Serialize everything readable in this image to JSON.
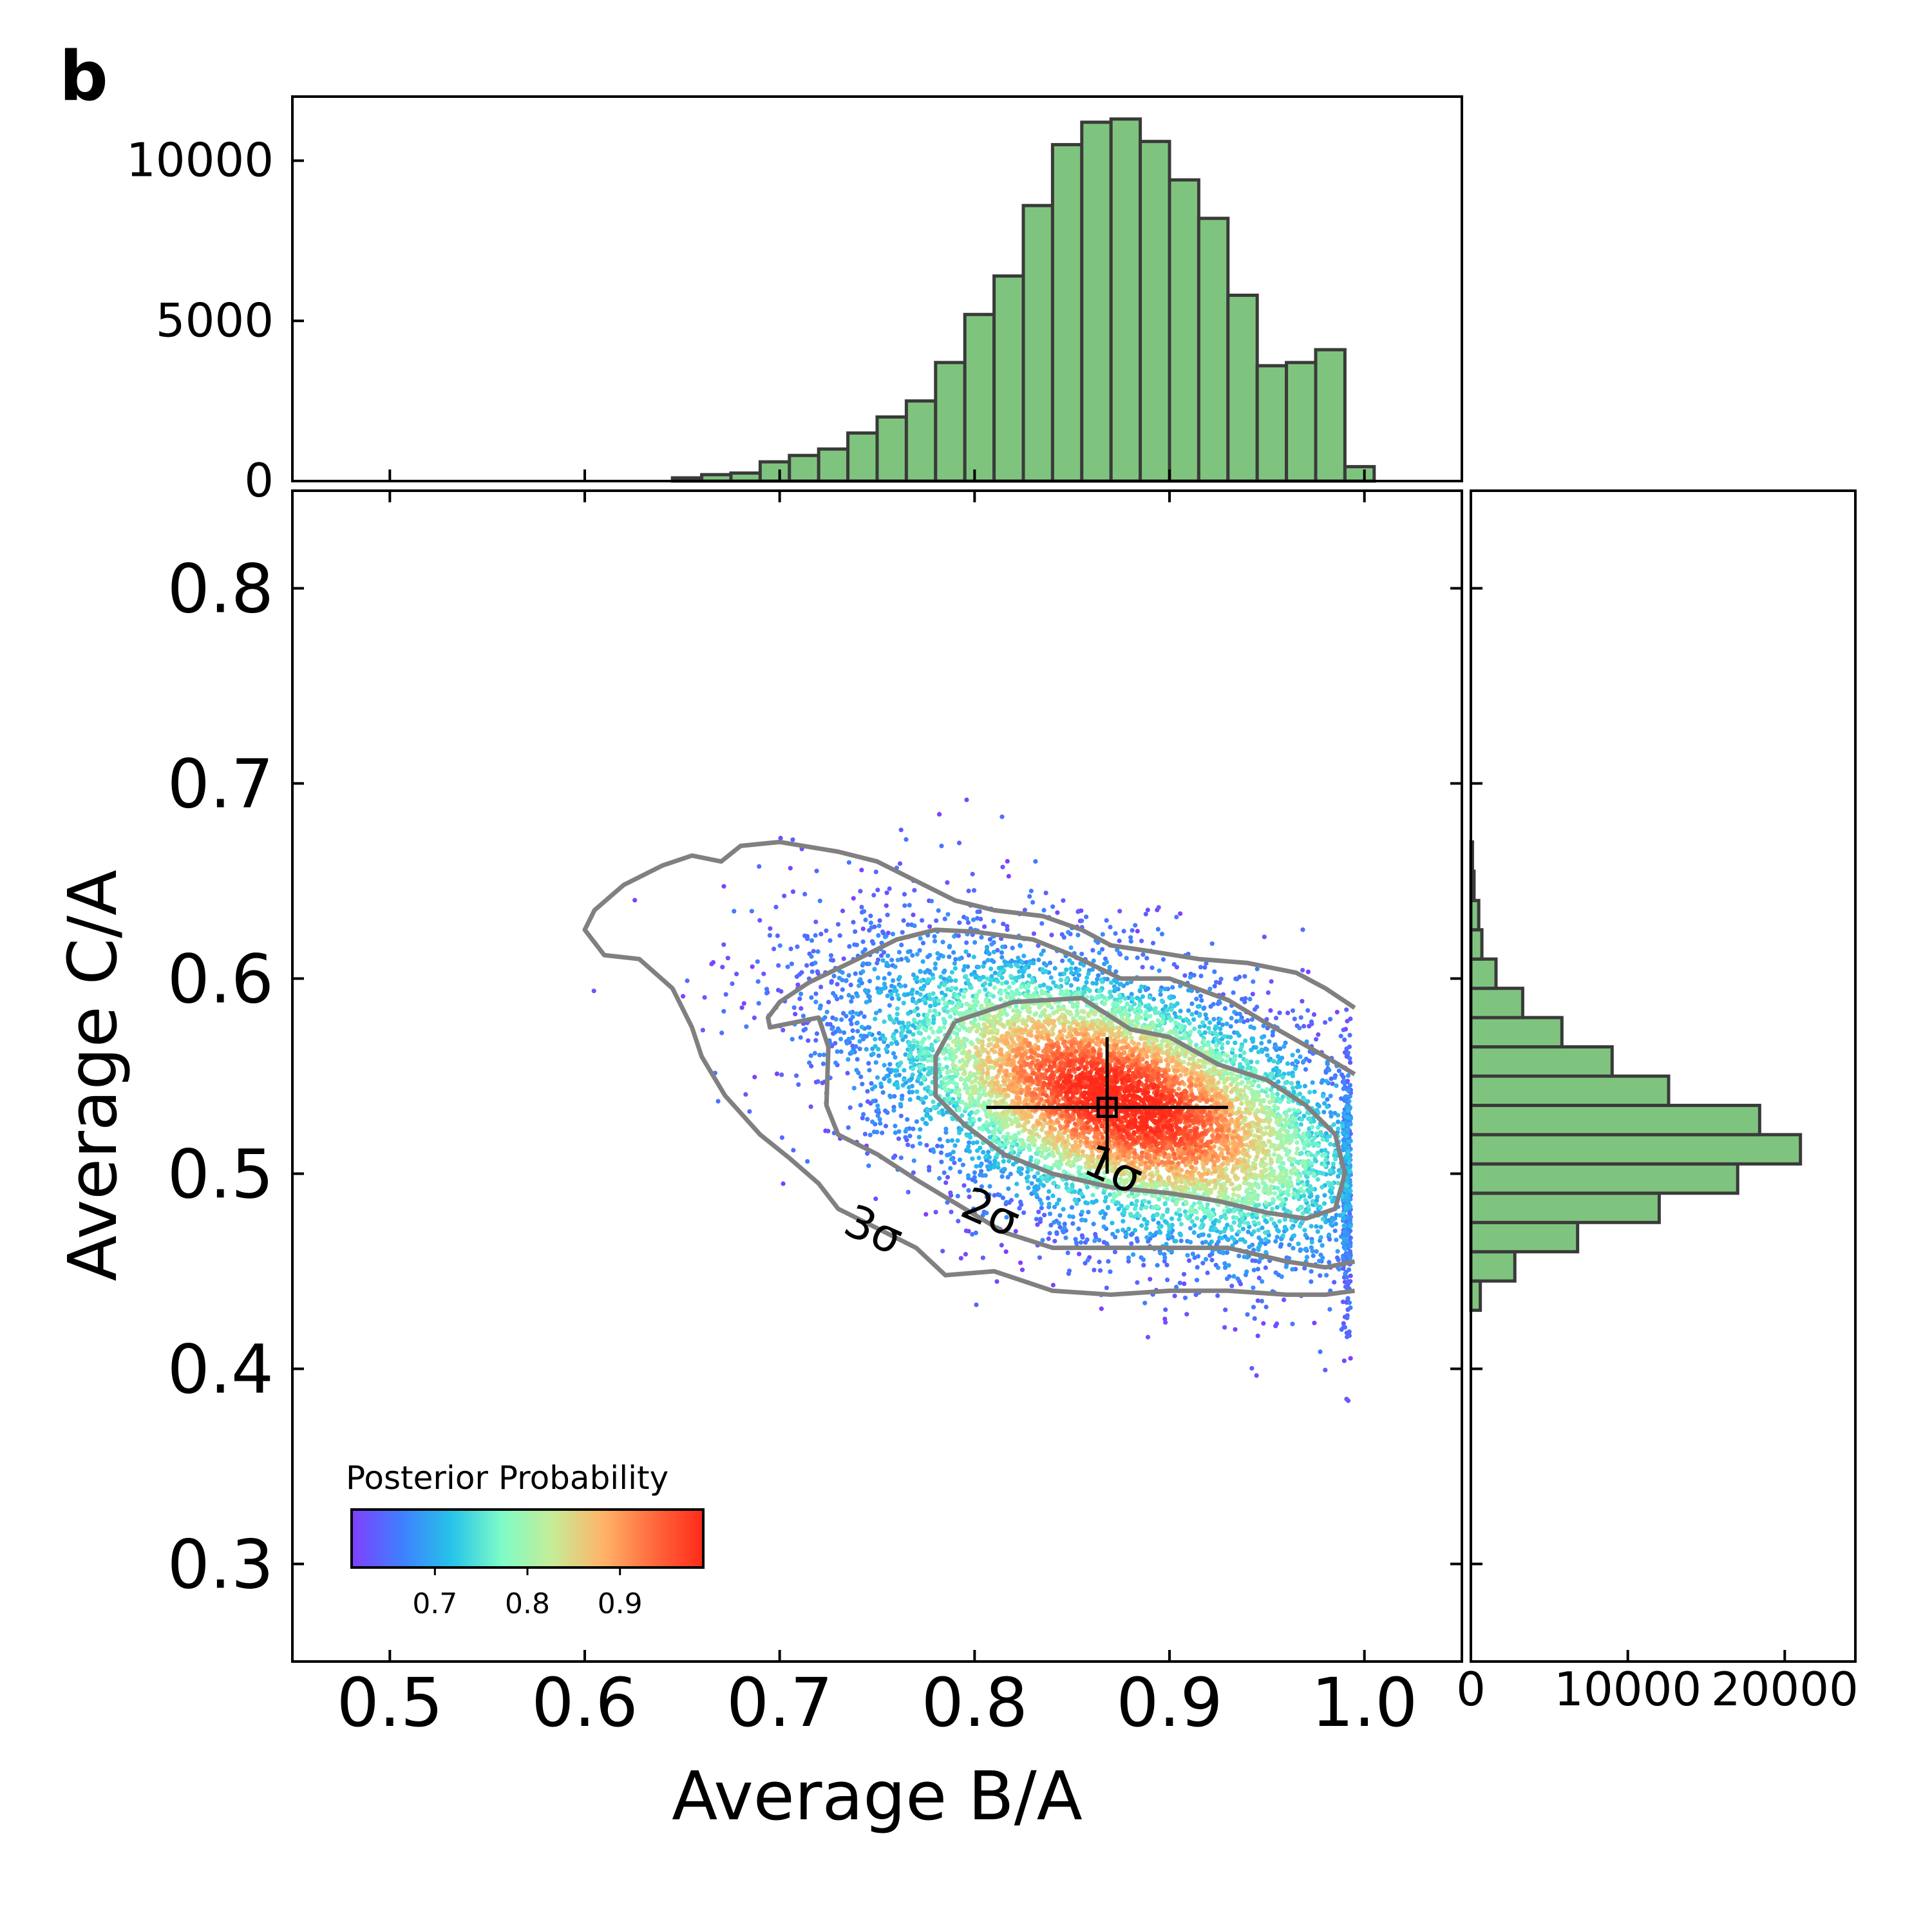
{
  "panel_label": "b",
  "chart_data": [
    {
      "type": "scatter",
      "role": "main-joint-distribution",
      "xlabel": "Average B/A",
      "ylabel": "Average C/A",
      "xlim": [
        0.45,
        1.05
      ],
      "ylim": [
        0.25,
        0.85
      ],
      "xticks": [
        0.5,
        0.6,
        0.7,
        0.8,
        0.9,
        1.0
      ],
      "xtick_labels": [
        "0.5",
        "0.6",
        "0.7",
        "0.8",
        "0.9",
        "1.0"
      ],
      "yticks": [
        0.3,
        0.4,
        0.5,
        0.6,
        0.7,
        0.8
      ],
      "ytick_labels": [
        "0.3",
        "0.4",
        "0.5",
        "0.6",
        "0.7",
        "0.8"
      ],
      "grid": false,
      "color_encoding": "posterior probability (rainbow colormap)",
      "colorbar": {
        "label": "Posterior Probability",
        "range": [
          0.61,
          0.99
        ],
        "ticks": [
          0.7,
          0.8,
          0.9
        ],
        "tick_labels": [
          "0.7",
          "0.8",
          "0.9"
        ],
        "colors": [
          "#7f3fff",
          "#3f7fff",
          "#26c4e8",
          "#7ffcc7",
          "#c6ec96",
          "#ffb469",
          "#ff6a3d",
          "#ff2a1a"
        ],
        "placement": "lower-left"
      },
      "best_fit": {
        "x": 0.868,
        "y": 0.534,
        "x_err": [
          0.062,
          0.062
        ],
        "y_err": [
          0.034,
          0.036
        ]
      },
      "contours": [
        {
          "label": "1σ",
          "label_at": [
            0.868,
            0.495
          ],
          "path": [
            [
              0.79,
              0.578
            ],
            [
              0.82,
              0.588
            ],
            [
              0.855,
              0.59
            ],
            [
              0.88,
              0.574
            ],
            [
              0.9,
              0.57
            ],
            [
              0.925,
              0.556
            ],
            [
              0.95,
              0.548
            ],
            [
              0.97,
              0.535
            ],
            [
              0.985,
              0.52
            ],
            [
              0.99,
              0.5
            ],
            [
              0.985,
              0.482
            ],
            [
              0.97,
              0.477
            ],
            [
              0.95,
              0.48
            ],
            [
              0.925,
              0.486
            ],
            [
              0.9,
              0.49
            ],
            [
              0.87,
              0.493
            ],
            [
              0.84,
              0.5
            ],
            [
              0.815,
              0.51
            ],
            [
              0.795,
              0.525
            ],
            [
              0.78,
              0.54
            ],
            [
              0.78,
              0.56
            ],
            [
              0.79,
              0.578
            ]
          ]
        },
        {
          "label": "2σ",
          "label_at": [
            0.805,
            0.473
          ],
          "path": [
            [
              0.995,
              0.551
            ],
            [
              0.98,
              0.56
            ],
            [
              0.95,
              0.577
            ],
            [
              0.93,
              0.589
            ],
            [
              0.9,
              0.6
            ],
            [
              0.875,
              0.6
            ],
            [
              0.85,
              0.612
            ],
            [
              0.83,
              0.62
            ],
            [
              0.8,
              0.624
            ],
            [
              0.78,
              0.625
            ],
            [
              0.76,
              0.62
            ],
            [
              0.74,
              0.61
            ],
            [
              0.715,
              0.598
            ],
            [
              0.7,
              0.588
            ],
            [
              0.694,
              0.58
            ],
            [
              0.695,
              0.575
            ],
            [
              0.72,
              0.58
            ],
            [
              0.725,
              0.565
            ],
            [
              0.724,
              0.535
            ],
            [
              0.73,
              0.52
            ],
            [
              0.75,
              0.51
            ],
            [
              0.77,
              0.497
            ],
            [
              0.79,
              0.485
            ],
            [
              0.815,
              0.47
            ],
            [
              0.84,
              0.462
            ],
            [
              0.87,
              0.462
            ],
            [
              0.9,
              0.462
            ],
            [
              0.93,
              0.462
            ],
            [
              0.96,
              0.455
            ],
            [
              0.98,
              0.452
            ],
            [
              0.995,
              0.455
            ]
          ]
        },
        {
          "label": "3σ",
          "label_at": [
            0.745,
            0.464
          ],
          "path": [
            [
              0.995,
              0.585
            ],
            [
              0.98,
              0.595
            ],
            [
              0.965,
              0.603
            ],
            [
              0.94,
              0.608
            ],
            [
              0.915,
              0.61
            ],
            [
              0.89,
              0.614
            ],
            [
              0.87,
              0.617
            ],
            [
              0.855,
              0.625
            ],
            [
              0.835,
              0.632
            ],
            [
              0.81,
              0.635
            ],
            [
              0.79,
              0.64
            ],
            [
              0.77,
              0.65
            ],
            [
              0.75,
              0.66
            ],
            [
              0.73,
              0.665
            ],
            [
              0.7,
              0.67
            ],
            [
              0.68,
              0.668
            ],
            [
              0.67,
              0.66
            ],
            [
              0.655,
              0.663
            ],
            [
              0.64,
              0.658
            ],
            [
              0.62,
              0.648
            ],
            [
              0.605,
              0.635
            ],
            [
              0.6,
              0.625
            ],
            [
              0.61,
              0.612
            ],
            [
              0.628,
              0.61
            ],
            [
              0.645,
              0.595
            ],
            [
              0.655,
              0.575
            ],
            [
              0.66,
              0.56
            ],
            [
              0.672,
              0.54
            ],
            [
              0.69,
              0.52
            ],
            [
              0.705,
              0.508
            ],
            [
              0.72,
              0.495
            ],
            [
              0.73,
              0.482
            ],
            [
              0.75,
              0.472
            ],
            [
              0.77,
              0.462
            ],
            [
              0.785,
              0.448
            ],
            [
              0.81,
              0.45
            ],
            [
              0.84,
              0.44
            ],
            [
              0.87,
              0.438
            ],
            [
              0.9,
              0.44
            ],
            [
              0.93,
              0.44
            ],
            [
              0.96,
              0.438
            ],
            [
              0.98,
              0.438
            ],
            [
              0.995,
              0.44
            ]
          ]
        }
      ]
    },
    {
      "type": "bar",
      "role": "top-marginal-histogram",
      "orientation": "vertical",
      "ylim": [
        0,
        12000
      ],
      "yticks": [
        0,
        5000,
        10000
      ],
      "ytick_labels": [
        "0",
        "5000",
        "10000"
      ],
      "bin_width": 0.015,
      "bin_starts": [
        0.645,
        0.66,
        0.675,
        0.69,
        0.705,
        0.72,
        0.735,
        0.75,
        0.765,
        0.78,
        0.795,
        0.81,
        0.825,
        0.84,
        0.855,
        0.87,
        0.885,
        0.9,
        0.915,
        0.93,
        0.945,
        0.96,
        0.975,
        0.99
      ],
      "values": [
        100,
        200,
        250,
        600,
        800,
        1000,
        1500,
        2000,
        2500,
        3700,
        5200,
        6400,
        8600,
        10500,
        11200,
        11300,
        10600,
        9400,
        8200,
        5800,
        3600,
        3700,
        4100,
        450
      ],
      "color": "#7fc47e",
      "edgecolor": "#3a3a3a"
    },
    {
      "type": "bar",
      "role": "right-marginal-histogram",
      "orientation": "horizontal",
      "xlim": [
        0,
        24500
      ],
      "xticks": [
        0,
        10000,
        20000
      ],
      "xtick_labels": [
        "0",
        "10000",
        "20000"
      ],
      "bin_width": 0.015,
      "bin_starts": [
        0.43,
        0.445,
        0.46,
        0.475,
        0.49,
        0.505,
        0.52,
        0.535,
        0.55,
        0.565,
        0.58,
        0.595,
        0.61,
        0.625,
        0.64,
        0.655
      ],
      "values": [
        600,
        2800,
        6800,
        12000,
        17000,
        21000,
        18400,
        12600,
        9000,
        5800,
        3300,
        1600,
        700,
        500,
        200,
        100
      ],
      "color": "#7fc47e",
      "edgecolor": "#3a3a3a"
    }
  ]
}
